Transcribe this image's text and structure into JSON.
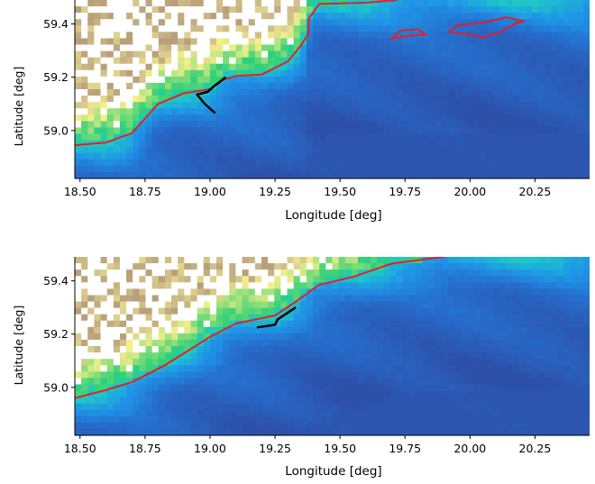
{
  "chart_data": [
    {
      "type": "heatmap",
      "title": "",
      "xlabel": "Longitude [deg]",
      "ylabel": "Latitude [deg]",
      "xlim": [
        18.48,
        20.46
      ],
      "ylim": [
        58.82,
        59.49
      ],
      "xticks": [
        "18.50",
        "18.75",
        "19.00",
        "19.25",
        "19.50",
        "19.75",
        "20.00",
        "20.25"
      ],
      "xtick_values": [
        18.5,
        18.75,
        19.0,
        19.25,
        19.5,
        19.75,
        20.0,
        20.25
      ],
      "yticks": [
        "59.0",
        "59.2",
        "59.4"
      ],
      "ytick_values": [
        59.0,
        59.2,
        59.4
      ],
      "colormap": "terrain",
      "colors": {
        "deep": "#2d4fa8",
        "mid": "#1f8fe0",
        "shallow": "#2fd07a",
        "land_low": "#f3f08a",
        "land_high": "#b9a27a",
        "contour": "#e0202a",
        "track": "#000000"
      },
      "contour_line": [
        [
          18.48,
          58.945
        ],
        [
          18.6,
          58.955
        ],
        [
          18.7,
          58.99
        ],
        [
          18.8,
          59.1
        ],
        [
          18.9,
          59.14
        ],
        [
          19.0,
          59.155
        ],
        [
          19.05,
          59.19
        ],
        [
          19.1,
          59.205
        ],
        [
          19.2,
          59.21
        ],
        [
          19.3,
          59.26
        ],
        [
          19.35,
          59.32
        ],
        [
          19.38,
          59.365
        ],
        [
          19.38,
          59.42
        ],
        [
          19.42,
          59.475
        ],
        [
          19.6,
          59.48
        ],
        [
          19.72,
          59.49
        ]
      ],
      "contour_islands": [
        [
          [
            19.7,
            59.345
          ],
          [
            19.76,
            59.355
          ],
          [
            19.83,
            59.36
          ],
          [
            19.8,
            59.38
          ],
          [
            19.73,
            59.375
          ],
          [
            19.7,
            59.345
          ]
        ],
        [
          [
            19.92,
            59.37
          ],
          [
            20.0,
            59.36
          ],
          [
            20.05,
            59.35
          ],
          [
            20.12,
            59.37
          ],
          [
            20.18,
            59.405
          ],
          [
            20.21,
            59.41
          ],
          [
            20.14,
            59.425
          ],
          [
            20.05,
            59.405
          ],
          [
            19.95,
            59.395
          ],
          [
            19.92,
            59.37
          ]
        ]
      ],
      "track": [
        [
          19.02,
          59.065
        ],
        [
          18.98,
          59.1
        ],
        [
          18.95,
          59.135
        ],
        [
          18.99,
          59.145
        ],
        [
          19.02,
          59.17
        ],
        [
          19.06,
          59.2
        ]
      ]
    },
    {
      "type": "heatmap",
      "title": "",
      "xlabel": "Longitude [deg]",
      "ylabel": "Latitude [deg]",
      "xlim": [
        18.48,
        20.46
      ],
      "ylim": [
        58.82,
        59.49
      ],
      "xticks": [
        "18.50",
        "18.75",
        "19.00",
        "19.25",
        "19.50",
        "19.75",
        "20.00",
        "20.25"
      ],
      "xtick_values": [
        18.5,
        18.75,
        19.0,
        19.25,
        19.5,
        19.75,
        20.0,
        20.25
      ],
      "yticks": [
        "59.0",
        "59.2",
        "59.4"
      ],
      "ytick_values": [
        59.0,
        59.2,
        59.4
      ],
      "colormap": "terrain",
      "colors": {
        "deep": "#2d4fa8",
        "mid": "#1f8fe0",
        "shallow": "#2fd07a",
        "land_low": "#f3f08a",
        "land_high": "#b9a27a",
        "contour": "#e0202a",
        "track": "#000000"
      },
      "contour_line": [
        [
          18.48,
          58.96
        ],
        [
          18.6,
          58.99
        ],
        [
          18.7,
          59.02
        ],
        [
          18.82,
          59.08
        ],
        [
          18.92,
          59.14
        ],
        [
          19.0,
          59.19
        ],
        [
          19.1,
          59.24
        ],
        [
          19.25,
          59.27
        ],
        [
          19.32,
          59.315
        ],
        [
          19.42,
          59.385
        ],
        [
          19.55,
          59.415
        ],
        [
          19.7,
          59.465
        ],
        [
          19.9,
          59.49
        ]
      ],
      "contour_islands": [],
      "track": [
        [
          19.18,
          59.225
        ],
        [
          19.25,
          59.235
        ],
        [
          19.26,
          59.255
        ],
        [
          19.33,
          59.3
        ]
      ]
    }
  ]
}
